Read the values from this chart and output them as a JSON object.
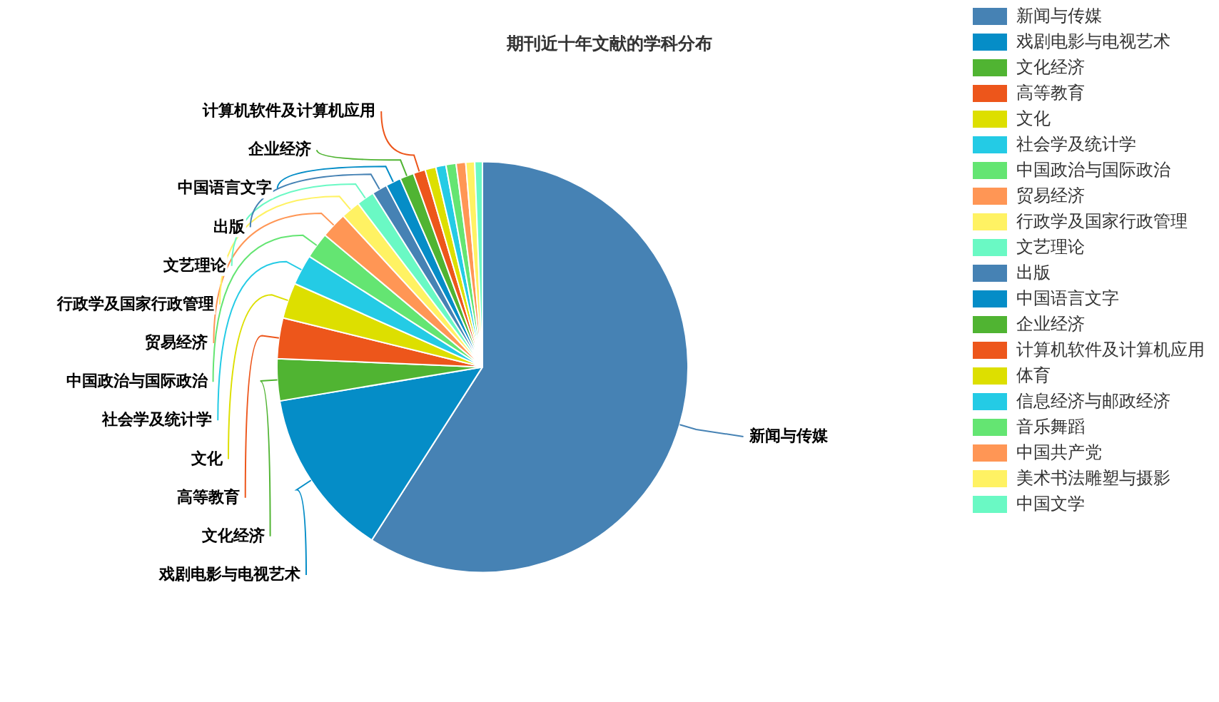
{
  "chart_data": {
    "type": "pie",
    "title": "期刊近十年文献的学科分布",
    "categories": [
      "新闻与传媒",
      "戏剧电影与电视艺术",
      "文化经济",
      "高等教育",
      "文化",
      "社会学及统计学",
      "中国政治与国际政治",
      "贸易经济",
      "行政学及国家行政管理",
      "文艺理论",
      "出版",
      "中国语言文字",
      "企业经济",
      "计算机软件及计算机应用",
      "体育",
      "信息经济与邮政经济",
      "音乐舞蹈",
      "中国共产党",
      "美术书法雕塑与摄影",
      "中国文学"
    ],
    "values": [
      59.05,
      13.3,
      3.3,
      3.2,
      2.8,
      2.4,
      2.05,
      2.05,
      1.5,
      1.4,
      1.2,
      1.2,
      1.1,
      0.95,
      0.85,
      0.8,
      0.8,
      0.75,
      0.7,
      0.6
    ],
    "colors": [
      "#4682b4",
      "#058dc7",
      "#50b432",
      "#ed561b",
      "#dddf00",
      "#24cbe5",
      "#64e572",
      "#ff9655",
      "#fff263",
      "#6af9c4",
      "#4682b4",
      "#058dc7",
      "#50b432",
      "#ed561b",
      "#dddf00",
      "#24cbe5",
      "#64e572",
      "#ff9655",
      "#fff263",
      "#6af9c4"
    ],
    "legend": "right"
  }
}
